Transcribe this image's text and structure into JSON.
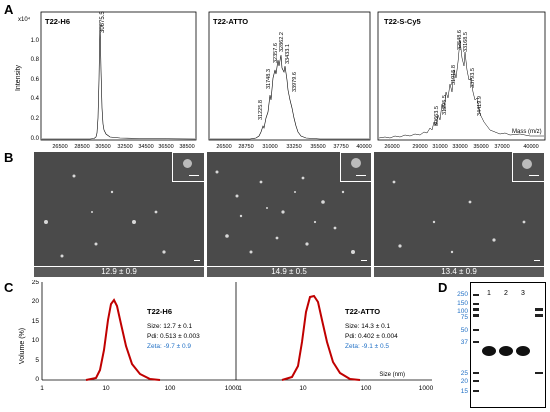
{
  "panel_labels": {
    "a": "A",
    "b": "B",
    "c": "C",
    "d": "D"
  },
  "ms": {
    "y_axis_label": "Intensity",
    "y_exponent": "x10⁴",
    "y_ticks": [
      "1.0",
      "0.8",
      "0.6",
      "0.4",
      "0.2",
      "0.0"
    ],
    "x_label": "Mass (m/z)",
    "spectra": [
      {
        "title": "T22-H6",
        "x_ticks": [
          "26500",
          "28500",
          "30500",
          "32500",
          "34500",
          "36500",
          "38500"
        ],
        "peaks": [
          "30675.5"
        ]
      },
      {
        "title": "T22-ATTO",
        "x_ticks": [
          "26500",
          "28750",
          "31000",
          "33250",
          "35500",
          "37750",
          "40000"
        ],
        "peaks": [
          "31225.8",
          "31748.3",
          "32357.6",
          "32862.2",
          "33433.1",
          "33979.6"
        ]
      },
      {
        "title": "T22-S-Cy5",
        "x_ticks": [
          "26000",
          "29000",
          "31000",
          "33000",
          "35000",
          "37000",
          "40000"
        ],
        "peaks": [
          "30663.5",
          "31295.5",
          "31915.8",
          "32548.6",
          "33168.5",
          "33793.5",
          "34419.9"
        ]
      }
    ]
  },
  "sem": {
    "captions": [
      "12.9 ± 0.9",
      "14.9 ± 0.5",
      "13.4 ± 0.9"
    ]
  },
  "dls": {
    "y_label": "Volume (%)",
    "x_label": "Size (nm)",
    "y_ticks": [
      "25",
      "20",
      "15",
      "10",
      "5",
      "0"
    ],
    "x_ticks": [
      "1",
      "10",
      "100",
      "1000"
    ],
    "colors": {
      "curve": "#c00000",
      "zeta": "#1f6fc5"
    },
    "samples": [
      {
        "title": "T22-H6",
        "size": "Size: 12.7 ± 0.1",
        "pdi": "Pdi: 0.513 ± 0.003",
        "zeta": "Zeta: -9.7 ± 0.9"
      },
      {
        "title": "T22-ATTO",
        "size": "Size: 14.3 ± 0.1",
        "pdi": "Pdi: 0.402 ± 0.004",
        "zeta": "Zeta: -9.1 ± 0.5"
      }
    ]
  },
  "gel": {
    "lanes": [
      "1",
      "2",
      "3"
    ],
    "markers": [
      "250",
      "150",
      "100",
      "75",
      "50",
      "37",
      "25",
      "20",
      "15"
    ],
    "marker_color": "#1f6fc5"
  }
}
